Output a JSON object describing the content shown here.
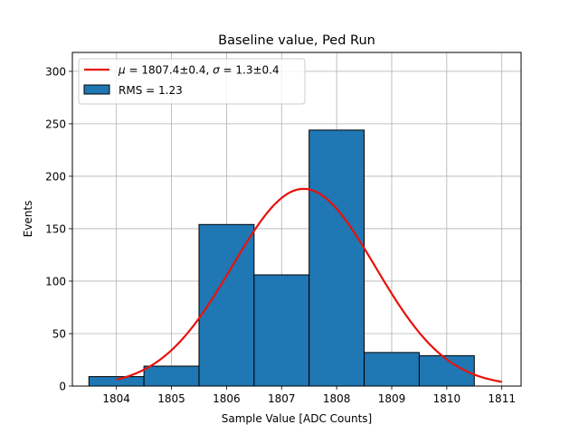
{
  "chart_data": {
    "type": "histogram",
    "title": "Baseline value, Ped Run",
    "xlabel": "Sample Value [ADC Counts]",
    "ylabel": "Events",
    "xlim": [
      1803.2,
      1811.35
    ],
    "ylim": [
      0,
      318
    ],
    "xticks": [
      1804,
      1805,
      1806,
      1807,
      1808,
      1809,
      1810,
      1811
    ],
    "yticks": [
      0,
      50,
      100,
      150,
      200,
      250,
      300
    ],
    "grid": true,
    "legend_position": "top-left",
    "bins": [
      {
        "left": 1803.5,
        "right": 1804.5,
        "count": 9
      },
      {
        "left": 1804.5,
        "right": 1805.5,
        "count": 19
      },
      {
        "left": 1805.5,
        "right": 1806.5,
        "count": 154
      },
      {
        "left": 1806.5,
        "right": 1807.5,
        "count": 106
      },
      {
        "left": 1807.5,
        "right": 1808.5,
        "count": 244
      },
      {
        "left": 1808.5,
        "right": 1809.5,
        "count": 32
      },
      {
        "left": 1809.5,
        "right": 1810.5,
        "count": 29
      }
    ],
    "histogram_label": "RMS = 1.23",
    "bar_color": "#1f77b4",
    "fit": {
      "label": "μ = 1807.4±0.4, σ = 1.3±0.4",
      "label_mu": "μ",
      "label_mu_rest": " = 1807.4±0.4, ",
      "label_sigma": "σ",
      "label_sigma_rest": " = 1.3±0.4",
      "mu": 1807.4,
      "sigma": 1.3,
      "amplitude": 188,
      "x_start": 1804.0,
      "x_end": 1811.0,
      "color": "#e8120c"
    }
  }
}
